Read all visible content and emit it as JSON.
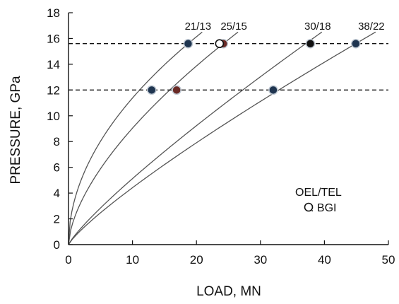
{
  "chart_data": {
    "type": "scatter",
    "title": "",
    "xlabel": "LOAD, MN",
    "ylabel": "PRESSURE, GPa",
    "xlim": [
      0,
      50
    ],
    "ylim": [
      0,
      18
    ],
    "xticks": [
      0,
      10,
      20,
      30,
      40,
      50
    ],
    "yticks": [
      0,
      2,
      4,
      6,
      8,
      10,
      12,
      14,
      16,
      18
    ],
    "grid": false,
    "reference_lines": [
      {
        "y": 15.6,
        "style": "dashed"
      },
      {
        "y": 12.0,
        "style": "dashed"
      }
    ],
    "series": [
      {
        "name": "21/13",
        "curve_x_end": 20.9,
        "curve_y_end": 16.5,
        "points": [
          {
            "x": 13.0,
            "y": 12.0,
            "fill": "#1f3550"
          },
          {
            "x": 18.7,
            "y": 15.6,
            "fill": "#1f3550"
          }
        ]
      },
      {
        "name": "25/15",
        "curve_x_end": 26.5,
        "curve_y_end": 16.5,
        "points": [
          {
            "x": 16.9,
            "y": 12.0,
            "fill": "#6a2a25"
          },
          {
            "x": 24.2,
            "y": 15.6,
            "fill": "#6a2a25"
          }
        ]
      },
      {
        "name": "30/18",
        "curve_x_end": 39.6,
        "curve_y_end": 16.5,
        "points": [
          {
            "x": 32.0,
            "y": 12.0,
            "fill": "#1f3550"
          },
          {
            "x": 37.8,
            "y": 15.6,
            "fill": "#111111"
          }
        ]
      },
      {
        "name": "38/22",
        "curve_x_end": 48.0,
        "curve_y_end": 16.5,
        "points": [
          {
            "x": 44.9,
            "y": 15.6,
            "fill": "#1f3550"
          }
        ]
      }
    ],
    "bgi_points": [
      {
        "x": 23.6,
        "y": 15.6
      }
    ],
    "annotations": {
      "line1": "OEL/TEL",
      "line2": ": BGI"
    },
    "colors": {
      "axis": "#111111",
      "curve": "#555555",
      "dashed_line": "#111111",
      "marker_ring": "#bfc8d2"
    }
  }
}
